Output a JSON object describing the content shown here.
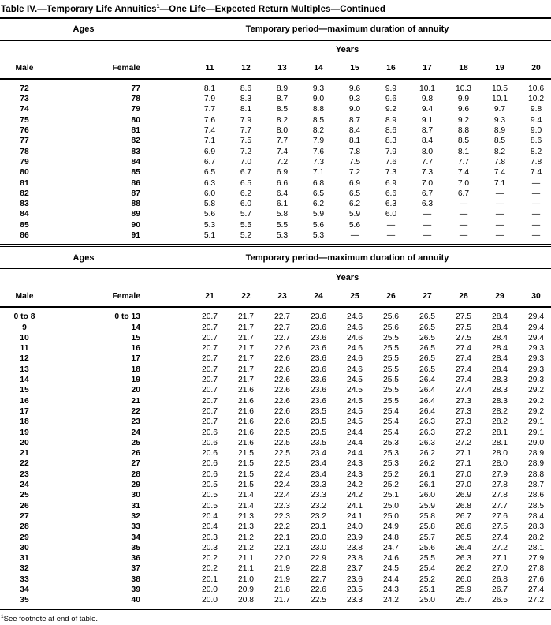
{
  "page": {
    "title_main": "Table IV.—Temporary Life Annuities",
    "title_footnote_marker": "1",
    "title_rest": "—One Life—Expected Return Multiples—Continued",
    "footnote_marker": "1",
    "footnote_text": "See footnote at end of table."
  },
  "tables": [
    {
      "ages_header": "Ages",
      "period_header": "Temporary period—maximum duration of annuity",
      "years_label": "Years",
      "male_header": "Male",
      "female_header": "Female",
      "year_cols": [
        "11",
        "12",
        "13",
        "14",
        "15",
        "16",
        "17",
        "18",
        "19",
        "20"
      ],
      "rows": [
        {
          "male": "72",
          "female": "77",
          "values": [
            "8.1",
            "8.6",
            "8.9",
            "9.3",
            "9.6",
            "9.9",
            "10.1",
            "10.3",
            "10.5",
            "10.6"
          ]
        },
        {
          "male": "73",
          "female": "78",
          "values": [
            "7.9",
            "8.3",
            "8.7",
            "9.0",
            "9.3",
            "9.6",
            "9.8",
            "9.9",
            "10.1",
            "10.2"
          ]
        },
        {
          "male": "74",
          "female": "79",
          "values": [
            "7.7",
            "8.1",
            "8.5",
            "8.8",
            "9.0",
            "9.2",
            "9.4",
            "9.6",
            "9.7",
            "9.8"
          ]
        },
        {
          "male": "75",
          "female": "80",
          "values": [
            "7.6",
            "7.9",
            "8.2",
            "8.5",
            "8.7",
            "8.9",
            "9.1",
            "9.2",
            "9.3",
            "9.4"
          ]
        },
        {
          "male": "76",
          "female": "81",
          "values": [
            "7.4",
            "7.7",
            "8.0",
            "8.2",
            "8.4",
            "8.6",
            "8.7",
            "8.8",
            "8.9",
            "9.0"
          ]
        },
        {
          "male": "77",
          "female": "82",
          "values": [
            "7.1",
            "7.5",
            "7.7",
            "7.9",
            "8.1",
            "8.3",
            "8.4",
            "8.5",
            "8.5",
            "8.6"
          ]
        },
        {
          "male": "78",
          "female": "83",
          "values": [
            "6.9",
            "7.2",
            "7.4",
            "7.6",
            "7.8",
            "7.9",
            "8.0",
            "8.1",
            "8.2",
            "8.2"
          ]
        },
        {
          "male": "79",
          "female": "84",
          "values": [
            "6.7",
            "7.0",
            "7.2",
            "7.3",
            "7.5",
            "7.6",
            "7.7",
            "7.7",
            "7.8",
            "7.8"
          ]
        },
        {
          "male": "80",
          "female": "85",
          "values": [
            "6.5",
            "6.7",
            "6.9",
            "7.1",
            "7.2",
            "7.3",
            "7.3",
            "7.4",
            "7.4",
            "7.4"
          ]
        },
        {
          "male": "81",
          "female": "86",
          "values": [
            "6.3",
            "6.5",
            "6.6",
            "6.8",
            "6.9",
            "6.9",
            "7.0",
            "7.0",
            "7.1",
            "—"
          ]
        },
        {
          "male": "82",
          "female": "87",
          "values": [
            "6.0",
            "6.2",
            "6.4",
            "6.5",
            "6.5",
            "6.6",
            "6.7",
            "6.7",
            "—",
            "—"
          ]
        },
        {
          "male": "83",
          "female": "88",
          "values": [
            "5.8",
            "6.0",
            "6.1",
            "6.2",
            "6.2",
            "6.3",
            "6.3",
            "—",
            "—",
            "—"
          ]
        },
        {
          "male": "84",
          "female": "89",
          "values": [
            "5.6",
            "5.7",
            "5.8",
            "5.9",
            "5.9",
            "6.0",
            "—",
            "—",
            "—",
            "—"
          ]
        },
        {
          "male": "85",
          "female": "90",
          "values": [
            "5.3",
            "5.5",
            "5.5",
            "5.6",
            "5.6",
            "—",
            "—",
            "—",
            "—",
            "—"
          ]
        },
        {
          "male": "86",
          "female": "91",
          "values": [
            "5.1",
            "5.2",
            "5.3",
            "5.3",
            "—",
            "—",
            "—",
            "—",
            "—",
            "—"
          ]
        }
      ]
    },
    {
      "ages_header": "Ages",
      "period_header": "Temporary period—maximum duration of annuity",
      "years_label": "Years",
      "male_header": "Male",
      "female_header": "Female",
      "year_cols": [
        "21",
        "22",
        "23",
        "24",
        "25",
        "26",
        "27",
        "28",
        "29",
        "30"
      ],
      "rows": [
        {
          "male": "0 to 8",
          "female": "0 to 13",
          "values": [
            "20.7",
            "21.7",
            "22.7",
            "23.6",
            "24.6",
            "25.6",
            "26.5",
            "27.5",
            "28.4",
            "29.4"
          ]
        },
        {
          "male": "9",
          "female": "14",
          "values": [
            "20.7",
            "21.7",
            "22.7",
            "23.6",
            "24.6",
            "25.6",
            "26.5",
            "27.5",
            "28.4",
            "29.4"
          ]
        },
        {
          "male": "10",
          "female": "15",
          "values": [
            "20.7",
            "21.7",
            "22.7",
            "23.6",
            "24.6",
            "25.5",
            "26.5",
            "27.5",
            "28.4",
            "29.4"
          ]
        },
        {
          "male": "11",
          "female": "16",
          "values": [
            "20.7",
            "21.7",
            "22.6",
            "23.6",
            "24.6",
            "25.5",
            "26.5",
            "27.4",
            "28.4",
            "29.3"
          ]
        },
        {
          "male": "12",
          "female": "17",
          "values": [
            "20.7",
            "21.7",
            "22.6",
            "23.6",
            "24.6",
            "25.5",
            "26.5",
            "27.4",
            "28.4",
            "29.3"
          ]
        },
        {
          "male": "13",
          "female": "18",
          "values": [
            "20.7",
            "21.7",
            "22.6",
            "23.6",
            "24.6",
            "25.5",
            "26.5",
            "27.4",
            "28.4",
            "29.3"
          ]
        },
        {
          "male": "14",
          "female": "19",
          "values": [
            "20.7",
            "21.7",
            "22.6",
            "23.6",
            "24.5",
            "25.5",
            "26.4",
            "27.4",
            "28.3",
            "29.3"
          ]
        },
        {
          "male": "15",
          "female": "20",
          "values": [
            "20.7",
            "21.6",
            "22.6",
            "23.6",
            "24.5",
            "25.5",
            "26.4",
            "27.4",
            "28.3",
            "29.2"
          ]
        },
        {
          "male": "16",
          "female": "21",
          "values": [
            "20.7",
            "21.6",
            "22.6",
            "23.6",
            "24.5",
            "25.5",
            "26.4",
            "27.3",
            "28.3",
            "29.2"
          ]
        },
        {
          "male": "17",
          "female": "22",
          "values": [
            "20.7",
            "21.6",
            "22.6",
            "23.5",
            "24.5",
            "25.4",
            "26.4",
            "27.3",
            "28.2",
            "29.2"
          ]
        },
        {
          "male": "18",
          "female": "23",
          "values": [
            "20.7",
            "21.6",
            "22.6",
            "23.5",
            "24.5",
            "25.4",
            "26.3",
            "27.3",
            "28.2",
            "29.1"
          ]
        },
        {
          "male": "19",
          "female": "24",
          "values": [
            "20.6",
            "21.6",
            "22.5",
            "23.5",
            "24.4",
            "25.4",
            "26.3",
            "27.2",
            "28.1",
            "29.1"
          ]
        },
        {
          "male": "20",
          "female": "25",
          "values": [
            "20.6",
            "21.6",
            "22.5",
            "23.5",
            "24.4",
            "25.3",
            "26.3",
            "27.2",
            "28.1",
            "29.0"
          ]
        },
        {
          "male": "21",
          "female": "26",
          "values": [
            "20.6",
            "21.5",
            "22.5",
            "23.4",
            "24.4",
            "25.3",
            "26.2",
            "27.1",
            "28.0",
            "28.9"
          ]
        },
        {
          "male": "22",
          "female": "27",
          "values": [
            "20.6",
            "21.5",
            "22.5",
            "23.4",
            "24.3",
            "25.3",
            "26.2",
            "27.1",
            "28.0",
            "28.9"
          ]
        },
        {
          "male": "23",
          "female": "28",
          "values": [
            "20.6",
            "21.5",
            "22.4",
            "23.4",
            "24.3",
            "25.2",
            "26.1",
            "27.0",
            "27.9",
            "28.8"
          ]
        },
        {
          "male": "24",
          "female": "29",
          "values": [
            "20.5",
            "21.5",
            "22.4",
            "23.3",
            "24.2",
            "25.2",
            "26.1",
            "27.0",
            "27.8",
            "28.7"
          ]
        },
        {
          "male": "25",
          "female": "30",
          "values": [
            "20.5",
            "21.4",
            "22.4",
            "23.3",
            "24.2",
            "25.1",
            "26.0",
            "26.9",
            "27.8",
            "28.6"
          ]
        },
        {
          "male": "26",
          "female": "31",
          "values": [
            "20.5",
            "21.4",
            "22.3",
            "23.2",
            "24.1",
            "25.0",
            "25.9",
            "26.8",
            "27.7",
            "28.5"
          ]
        },
        {
          "male": "27",
          "female": "32",
          "values": [
            "20.4",
            "21.3",
            "22.3",
            "23.2",
            "24.1",
            "25.0",
            "25.8",
            "26.7",
            "27.6",
            "28.4"
          ]
        },
        {
          "male": "28",
          "female": "33",
          "values": [
            "20.4",
            "21.3",
            "22.2",
            "23.1",
            "24.0",
            "24.9",
            "25.8",
            "26.6",
            "27.5",
            "28.3"
          ]
        },
        {
          "male": "29",
          "female": "34",
          "values": [
            "20.3",
            "21.2",
            "22.1",
            "23.0",
            "23.9",
            "24.8",
            "25.7",
            "26.5",
            "27.4",
            "28.2"
          ]
        },
        {
          "male": "30",
          "female": "35",
          "values": [
            "20.3",
            "21.2",
            "22.1",
            "23.0",
            "23.8",
            "24.7",
            "25.6",
            "26.4",
            "27.2",
            "28.1"
          ]
        },
        {
          "male": "31",
          "female": "36",
          "values": [
            "20.2",
            "21.1",
            "22.0",
            "22.9",
            "23.8",
            "24.6",
            "25.5",
            "26.3",
            "27.1",
            "27.9"
          ]
        },
        {
          "male": "32",
          "female": "37",
          "values": [
            "20.2",
            "21.1",
            "21.9",
            "22.8",
            "23.7",
            "24.5",
            "25.4",
            "26.2",
            "27.0",
            "27.8"
          ]
        },
        {
          "male": "33",
          "female": "38",
          "values": [
            "20.1",
            "21.0",
            "21.9",
            "22.7",
            "23.6",
            "24.4",
            "25.2",
            "26.0",
            "26.8",
            "27.6"
          ]
        },
        {
          "male": "34",
          "female": "39",
          "values": [
            "20.0",
            "20.9",
            "21.8",
            "22.6",
            "23.5",
            "24.3",
            "25.1",
            "25.9",
            "26.7",
            "27.4"
          ]
        },
        {
          "male": "35",
          "female": "40",
          "values": [
            "20.0",
            "20.8",
            "21.7",
            "22.5",
            "23.3",
            "24.2",
            "25.0",
            "25.7",
            "26.5",
            "27.2"
          ]
        }
      ]
    }
  ]
}
